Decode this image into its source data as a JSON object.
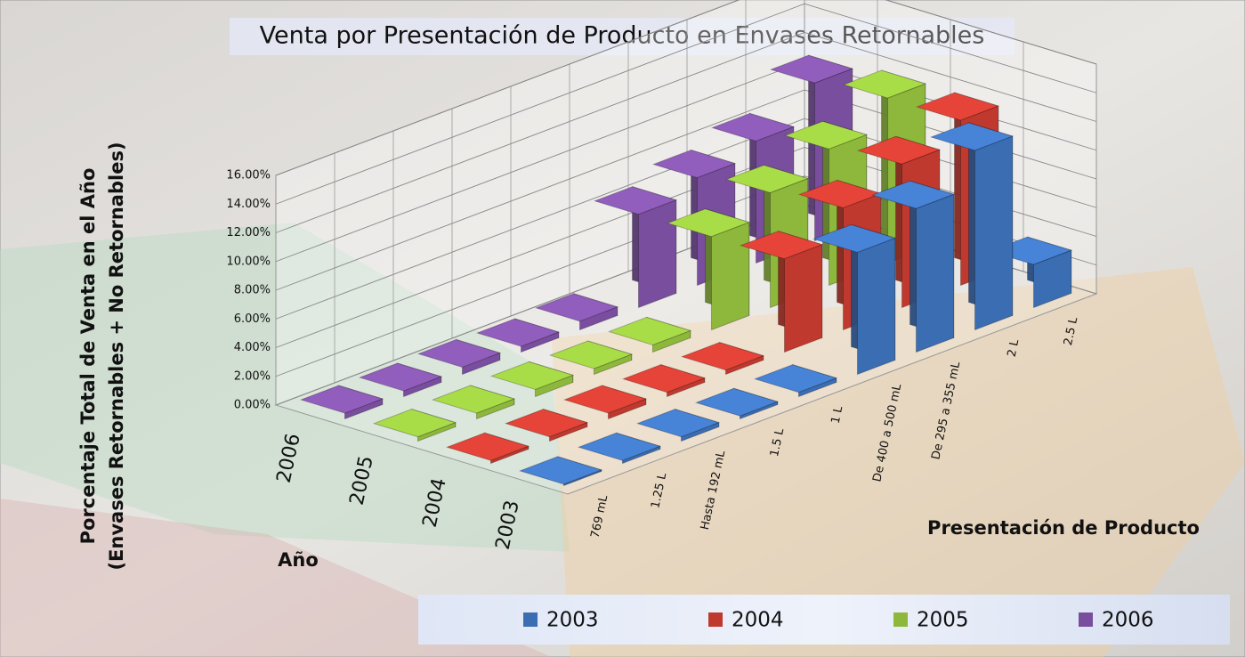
{
  "chart_data": {
    "type": "bar3d",
    "title": "Venta por Presentación de Producto en Envases Retornables",
    "y_label": [
      "Porcentaje  Total de Venta en el Año",
      "(Envases Retornables +  No Retornables)"
    ],
    "x_label": "Presentación de Producto",
    "z_label": "Año",
    "categories": [
      "769 mL",
      "1.25 L",
      "Hasta 192 mL",
      "1.5 L",
      "1 L",
      "De 400 a 500 mL",
      "De 295 a 355 mL",
      "2 L",
      "2.5 L"
    ],
    "series": [
      {
        "name": "2003",
        "color": "#3b6db3",
        "values": [
          0.1,
          0.2,
          0.3,
          0.2,
          0.3,
          8.5,
          10,
          12.5,
          3
        ]
      },
      {
        "name": "2004",
        "color": "#c0392f",
        "values": [
          0.2,
          0.3,
          0.4,
          0.3,
          0.3,
          6.5,
          8.5,
          10,
          11.5
        ]
      },
      {
        "name": "2005",
        "color": "#8db83c",
        "values": [
          0.3,
          0.4,
          0.5,
          0.4,
          0.5,
          6.5,
          8,
          9.5,
          11.5
        ]
      },
      {
        "name": "2006",
        "color": "#7a4e9e",
        "values": [
          0.4,
          0.4,
          0.5,
          0.4,
          0.6,
          6.5,
          7.5,
          8.5,
          11
        ]
      }
    ],
    "ylim": [
      0,
      16
    ],
    "yticks": [
      {
        "value": 0,
        "label": "0.00%"
      },
      {
        "value": 2,
        "label": "2.00%"
      },
      {
        "value": 4,
        "label": "4.00%"
      },
      {
        "value": 6,
        "label": "6.00%"
      },
      {
        "value": 8,
        "label": "8.00%"
      },
      {
        "value": 10,
        "label": "10.00%"
      },
      {
        "value": 12,
        "label": "12.00%"
      },
      {
        "value": 14,
        "label": "14.00%"
      },
      {
        "value": 16,
        "label": "16.00%"
      }
    ],
    "grid": true
  }
}
